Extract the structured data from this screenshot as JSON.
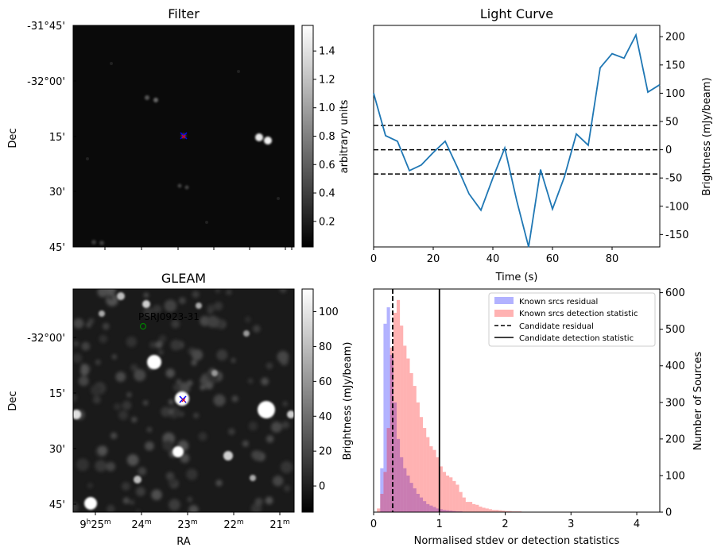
{
  "panels": {
    "filter": {
      "title": "Filter",
      "ylabel": "Dec",
      "dec_ticks": [
        "-31°45'",
        "-32°00'",
        "15'",
        "30'",
        "45'"
      ],
      "colorbar": {
        "label": "arbitrary units",
        "range": [
          0.02,
          1.58
        ],
        "ticks": [
          "0.2",
          "0.4",
          "0.6",
          "0.8",
          "1.0",
          "1.2",
          "1.4"
        ]
      },
      "markers": {
        "candidate": "×",
        "candidate_color": "#0000ff",
        "cross_color": "#ff0000"
      }
    },
    "gleam": {
      "title": "GLEAM",
      "xlabel": "RA",
      "ylabel": "Dec",
      "dec_ticks": [
        "-32°00'",
        "15'",
        "30'",
        "45'"
      ],
      "ra_ticks": [
        {
          "main": "9",
          "sup": "h",
          "main2": "25",
          "sup2": "m"
        },
        {
          "main": "24",
          "sup": "m"
        },
        {
          "main": "23",
          "sup": "m"
        },
        {
          "main": "22",
          "sup": "m"
        },
        {
          "main": "21",
          "sup": "m"
        }
      ],
      "source_label": "PSRJ0923-31",
      "source_label_color": "#008000",
      "colorbar": {
        "label": "Brightness (mJy/beam)",
        "range": [
          -15,
          113
        ],
        "ticks": [
          "0",
          "20",
          "40",
          "60",
          "80",
          "100"
        ]
      }
    }
  },
  "chart_data": [
    {
      "type": "line",
      "title": "Light Curve",
      "xlabel": "Time (s)",
      "ylabel": "Brightness (mJy/beam)",
      "xlim": [
        0,
        96
      ],
      "ylim": [
        -172,
        220
      ],
      "x": [
        0,
        4,
        8,
        12,
        16,
        20,
        24,
        28,
        32,
        36,
        40,
        44,
        48,
        52,
        56,
        60,
        64,
        68,
        72,
        76,
        80,
        84,
        88,
        92,
        96
      ],
      "y": [
        100,
        25,
        15,
        -37,
        -27,
        -5,
        15,
        -30,
        -78,
        -107,
        -50,
        3,
        -90,
        -172,
        -35,
        -105,
        -48,
        28,
        8,
        145,
        170,
        162,
        203,
        102,
        115
      ],
      "color": "#1f77b4",
      "x_ticks": [
        0,
        20,
        40,
        60,
        80
      ],
      "y_ticks": [
        -150,
        -100,
        -50,
        0,
        50,
        100,
        150,
        200
      ],
      "hlines": [
        43,
        0,
        -43
      ]
    },
    {
      "type": "bar",
      "xlabel": "Normalised stdev or detection statistics",
      "ylabel": "Number of Sources",
      "xlim": [
        0,
        4.35
      ],
      "ylim": [
        0,
        610
      ],
      "x_ticks": [
        0,
        1,
        2,
        3,
        4
      ],
      "y_ticks": [
        0,
        100,
        200,
        300,
        400,
        500,
        600
      ],
      "bin_width": 0.05,
      "series": [
        {
          "name": "Known srcs residual",
          "color": "#0000ff",
          "start": 0.05,
          "values": [
            0,
            120,
            515,
            560,
            430,
            300,
            200,
            150,
            120,
            100,
            80,
            65,
            50,
            40,
            30,
            22,
            18,
            14,
            10,
            8,
            6,
            5,
            4,
            3,
            2,
            2,
            1,
            1
          ]
        },
        {
          "name": "Known srcs detection statistic",
          "color": "#ff0000",
          "start": 0.05,
          "values": [
            10,
            50,
            110,
            230,
            450,
            545,
            580,
            510,
            455,
            420,
            380,
            345,
            300,
            260,
            230,
            205,
            180,
            170,
            150,
            125,
            110,
            100,
            95,
            85,
            75,
            55,
            40,
            28,
            28,
            22,
            20,
            15,
            12,
            10,
            8,
            6,
            6,
            5,
            4,
            3,
            3,
            2,
            2,
            2,
            1,
            1,
            1,
            1,
            1,
            1,
            1,
            1,
            1,
            0,
            1,
            0,
            0,
            0,
            0,
            0,
            0,
            0,
            0,
            0,
            0,
            0,
            0,
            0,
            0,
            0,
            0,
            0,
            0,
            0,
            0,
            0,
            0,
            0,
            0,
            0,
            0,
            0
          ]
        }
      ],
      "vlines": [
        {
          "name": "Candidate residual",
          "x": 0.29,
          "style": "dashed"
        },
        {
          "name": "Candidate detection statistic",
          "x": 1.0,
          "style": "solid"
        }
      ],
      "legend": "top-right"
    }
  ]
}
